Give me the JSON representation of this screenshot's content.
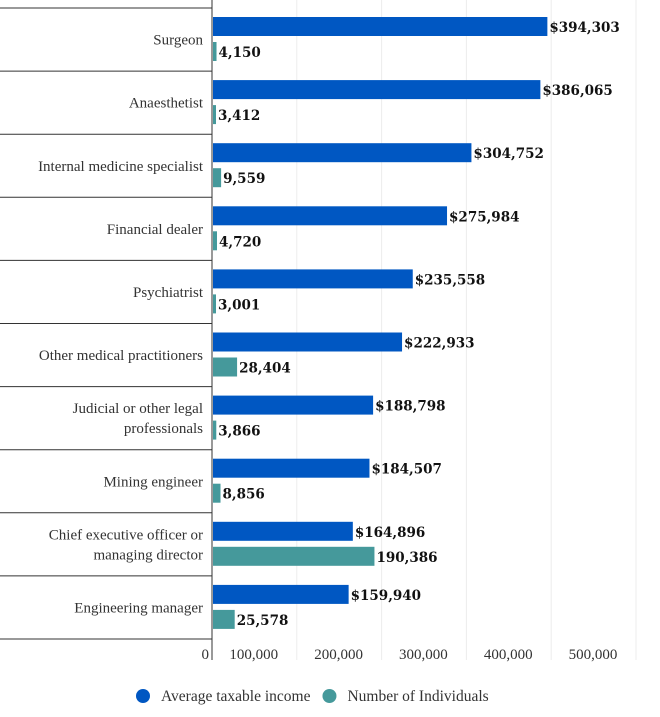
{
  "chart_data": {
    "type": "bar",
    "orientation": "horizontal",
    "categories": [
      "Surgeon",
      "Anaesthetist",
      "Internal medicine specialist",
      "Financial dealer",
      "Psychiatrist",
      "Other medical practitioners",
      "Judicial or other legal professionals",
      "Mining engineer",
      "Chief executive officer or managing director",
      "Engineering manager"
    ],
    "series": [
      {
        "name": "Average taxable income",
        "color": "#0057c2",
        "values": [
          394303,
          386065,
          304752,
          275984,
          235558,
          222933,
          188798,
          184507,
          164896,
          159940
        ],
        "labels": [
          "$394,303",
          "$386,065",
          "$304,752",
          "$275,984",
          "$235,558",
          "$222,933",
          "$188,798",
          "$184,507",
          "$164,896",
          "$159,940"
        ]
      },
      {
        "name": "Number of Individuals",
        "color": "#45999b",
        "values": [
          4150,
          3412,
          9559,
          4720,
          3001,
          28404,
          3866,
          8856,
          190386,
          25578
        ],
        "labels": [
          "4,150",
          "3,412",
          "9,559",
          "4,720",
          "3,001",
          "28,404",
          "3,866",
          "8,856",
          "190,386",
          "25,578"
        ]
      }
    ],
    "xlim": [
      0,
      500000
    ],
    "xticks": [
      "0",
      "100,000",
      "200,000",
      "300,000",
      "400,000",
      "500,000"
    ],
    "grid": true,
    "legend": "bottom"
  }
}
